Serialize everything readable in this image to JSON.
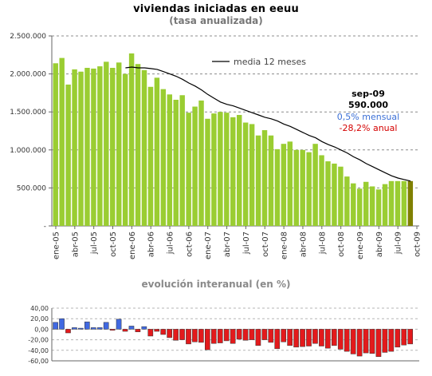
{
  "header": {
    "title": "viviendas iniciadas en eeuu",
    "subtitle": "(tasa anualizada)",
    "lower_title": "evolución interanual (en %)"
  },
  "annotation": {
    "month": "sep-09",
    "value": "590.000",
    "monthly": "0,5% mensual",
    "annual": "-28,2% anual"
  },
  "colors": {
    "bar": "#9acd32",
    "bar_last": "#808000",
    "line": "#000000",
    "pos": "#4169e1",
    "neg": "#e31a1c",
    "monthly_text": "#3b6fd6",
    "annual_text": "#d40000"
  },
  "chart_data": [
    {
      "type": "bar",
      "title": "viviendas iniciadas en eeuu",
      "subtitle": "(tasa anualizada)",
      "ylim": [
        0,
        2500000
      ],
      "yticks": [
        0,
        500000,
        1000000,
        1500000,
        2000000,
        2500000
      ],
      "ytick_labels": [
        "-",
        "500.000",
        "1.000.000",
        "1.500.000",
        "2.000.000",
        "2.500.000"
      ],
      "grid": true,
      "xtick_labels": [
        "ene-05",
        "abr-05",
        "jul-05",
        "oct-05",
        "ene-06",
        "abr-06",
        "jul-06",
        "oct-06",
        "ene-07",
        "abr-07",
        "jul-07",
        "oct-07",
        "ene-08",
        "abr-08",
        "jul-08",
        "oct-08",
        "ene-09",
        "abr-09",
        "jul-09",
        "oct-09"
      ],
      "categories": [
        "ene-05",
        "feb-05",
        "mar-05",
        "abr-05",
        "may-05",
        "jun-05",
        "jul-05",
        "ago-05",
        "sep-05",
        "oct-05",
        "nov-05",
        "dic-05",
        "ene-06",
        "feb-06",
        "mar-06",
        "abr-06",
        "may-06",
        "jun-06",
        "jul-06",
        "ago-06",
        "sep-06",
        "oct-06",
        "nov-06",
        "dic-06",
        "ene-07",
        "feb-07",
        "mar-07",
        "abr-07",
        "may-07",
        "jun-07",
        "jul-07",
        "ago-07",
        "sep-07",
        "oct-07",
        "nov-07",
        "dic-07",
        "ene-08",
        "feb-08",
        "mar-08",
        "abr-08",
        "may-08",
        "jun-08",
        "jul-08",
        "ago-08",
        "sep-08",
        "oct-08",
        "nov-08",
        "dic-08",
        "ene-09",
        "feb-09",
        "mar-09",
        "abr-09",
        "may-09",
        "jun-09",
        "jul-09",
        "ago-09",
        "sep-09"
      ],
      "series": [
        {
          "type": "bar",
          "values": [
            2140000,
            2210000,
            1860000,
            2060000,
            2030000,
            2080000,
            2070000,
            2100000,
            2160000,
            2080000,
            2150000,
            2000000,
            2270000,
            2130000,
            2050000,
            1830000,
            1950000,
            1800000,
            1730000,
            1660000,
            1720000,
            1490000,
            1570000,
            1650000,
            1410000,
            1480000,
            1500000,
            1490000,
            1430000,
            1460000,
            1360000,
            1340000,
            1190000,
            1260000,
            1190000,
            1010000,
            1080000,
            1110000,
            1000000,
            1000000,
            970000,
            1080000,
            930000,
            850000,
            820000,
            780000,
            650000,
            560000,
            490000,
            580000,
            520000,
            480000,
            550000,
            590000,
            590000,
            590000,
            590000
          ]
        },
        {
          "type": "line",
          "name": "media 12 meses",
          "values": [
            null,
            null,
            null,
            null,
            null,
            null,
            null,
            null,
            null,
            null,
            null,
            2080000,
            2090000,
            2080000,
            2080000,
            2070000,
            2060000,
            2030000,
            2000000,
            1970000,
            1930000,
            1880000,
            1840000,
            1790000,
            1730000,
            1680000,
            1630000,
            1600000,
            1580000,
            1550000,
            1520000,
            1490000,
            1460000,
            1430000,
            1410000,
            1380000,
            1340000,
            1310000,
            1270000,
            1230000,
            1190000,
            1160000,
            1110000,
            1070000,
            1040000,
            1000000,
            960000,
            910000,
            870000,
            820000,
            780000,
            740000,
            700000,
            660000,
            630000,
            610000,
            590000
          ]
        }
      ]
    },
    {
      "type": "bar",
      "title": "evolución interanual (en %)",
      "ylim": [
        -60,
        40
      ],
      "yticks": [
        40,
        20,
        0,
        -20,
        -40,
        -60
      ],
      "ytick_labels": [
        "40,00",
        "20,00",
        "0,00",
        "-20,00",
        "-40,00",
        "-60,00"
      ],
      "categories": [
        "ene-05",
        "feb-05",
        "mar-05",
        "abr-05",
        "may-05",
        "jun-05",
        "jul-05",
        "ago-05",
        "sep-05",
        "oct-05",
        "nov-05",
        "dic-05",
        "ene-06",
        "feb-06",
        "mar-06",
        "abr-06",
        "may-06",
        "jun-06",
        "jul-06",
        "ago-06",
        "sep-06",
        "oct-06",
        "nov-06",
        "dic-06",
        "ene-07",
        "feb-07",
        "mar-07",
        "abr-07",
        "may-07",
        "jun-07",
        "jul-07",
        "ago-07",
        "sep-07",
        "oct-07",
        "nov-07",
        "dic-07",
        "ene-08",
        "feb-08",
        "mar-08",
        "abr-08",
        "may-08",
        "jun-08",
        "jul-08",
        "ago-08",
        "sep-08",
        "oct-08",
        "nov-08",
        "dic-08",
        "ene-09",
        "feb-09",
        "mar-09",
        "abr-09",
        "may-09",
        "jun-09",
        "jul-09",
        "ago-09",
        "sep-09"
      ],
      "values": [
        13,
        20,
        -7,
        3,
        2,
        14,
        3,
        3,
        13,
        -2,
        19,
        -4,
        6,
        -5,
        5,
        -13,
        -4,
        -10,
        -16,
        -21,
        -20,
        -28,
        -24,
        -25,
        -39,
        -27,
        -26,
        -22,
        -27,
        -19,
        -21,
        -20,
        -31,
        -20,
        -25,
        -37,
        -24,
        -31,
        -34,
        -33,
        -32,
        -27,
        -32,
        -36,
        -31,
        -38,
        -42,
        -47,
        -51,
        -45,
        -46,
        -52,
        -44,
        -42,
        -34,
        -30,
        -28
      ]
    }
  ]
}
